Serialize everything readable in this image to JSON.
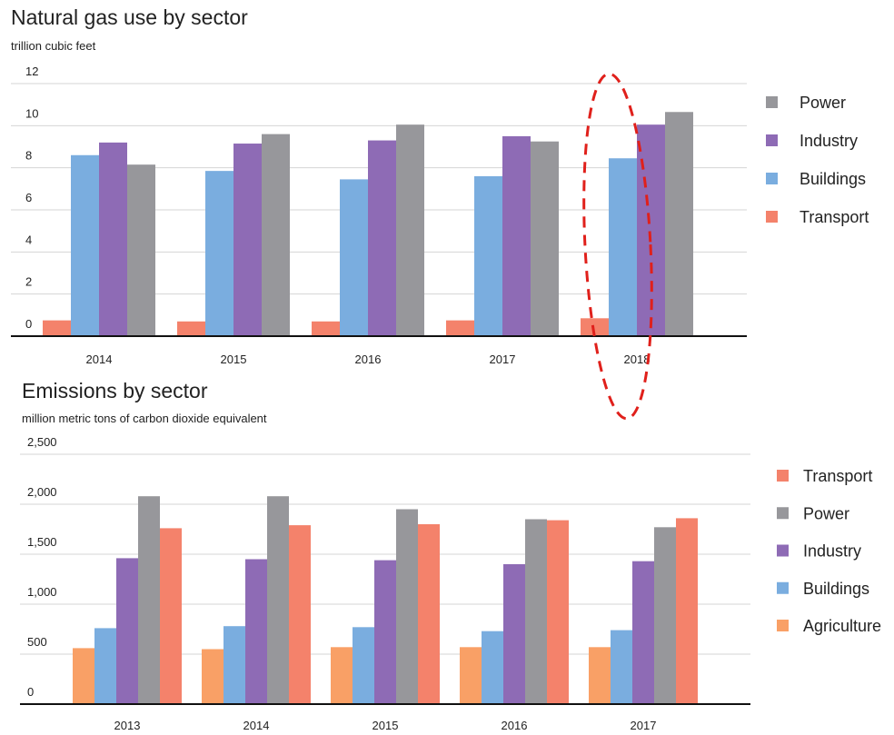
{
  "chart_data": [
    {
      "type": "bar",
      "title": "Natural gas use by sector",
      "subtitle": "trillion cubic feet",
      "categories": [
        "2014",
        "2015",
        "2016",
        "2017",
        "2018"
      ],
      "series": [
        {
          "name": "Transport",
          "color": "#f4826b",
          "values": [
            0.75,
            0.7,
            0.7,
            0.75,
            0.85
          ]
        },
        {
          "name": "Buildings",
          "color": "#7aaddf",
          "values": [
            8.6,
            7.85,
            7.45,
            7.6,
            8.45
          ]
        },
        {
          "name": "Industry",
          "color": "#8e6bb5",
          "values": [
            9.2,
            9.15,
            9.3,
            9.5,
            10.05
          ]
        },
        {
          "name": "Power",
          "color": "#97979b",
          "values": [
            8.15,
            9.6,
            10.05,
            9.25,
            10.65
          ]
        }
      ],
      "ylim": [
        0,
        12
      ],
      "yticks": [
        0,
        2,
        4,
        6,
        8,
        10,
        12
      ],
      "grid": true,
      "legend": "right"
    },
    {
      "type": "bar",
      "title": "Emissions by sector",
      "subtitle": "million metric tons of carbon dioxide equivalent",
      "categories": [
        "2013",
        "2014",
        "2015",
        "2016",
        "2017"
      ],
      "series": [
        {
          "name": "Agriculture",
          "color": "#f9a066",
          "values": [
            560,
            550,
            570,
            570,
            570
          ]
        },
        {
          "name": "Buildings",
          "color": "#7aaddf",
          "values": [
            760,
            780,
            770,
            730,
            740
          ]
        },
        {
          "name": "Industry",
          "color": "#8e6bb5",
          "values": [
            1460,
            1450,
            1440,
            1400,
            1430
          ]
        },
        {
          "name": "Power",
          "color": "#97979b",
          "values": [
            2080,
            2080,
            1950,
            1850,
            1770
          ]
        },
        {
          "name": "Transport",
          "color": "#f4826b",
          "values": [
            1760,
            1790,
            1800,
            1840,
            1860
          ]
        }
      ],
      "ylim": [
        0,
        2500
      ],
      "yticks": [
        0,
        500,
        {
          "value": 1000,
          "label": "1,000"
        },
        {
          "value": 1500,
          "label": "1,500"
        },
        {
          "value": 2000,
          "label": "2,000"
        },
        {
          "value": 2500,
          "label": "2,500"
        }
      ],
      "grid": true,
      "legend": "right"
    }
  ]
}
